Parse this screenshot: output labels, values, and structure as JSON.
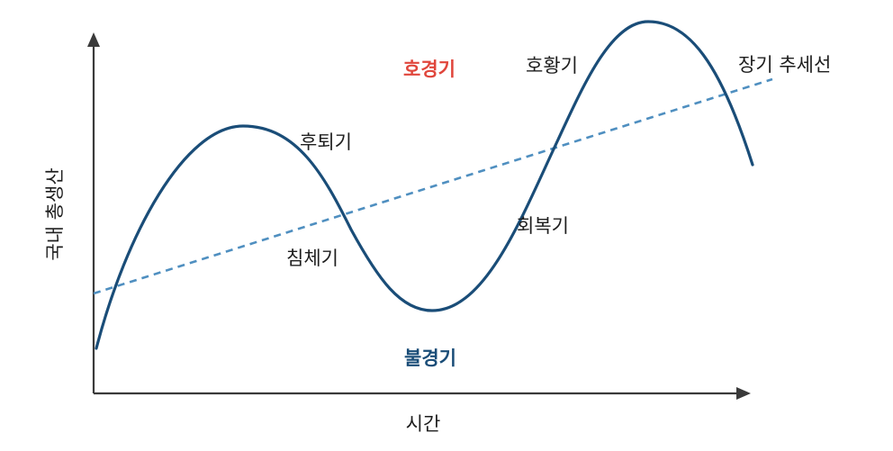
{
  "axes": {
    "x_label": "시간",
    "y_label": "국내 총생산"
  },
  "regions": {
    "boom": {
      "label": "호경기",
      "color": "#e0463c"
    },
    "recession": {
      "label": "불경기",
      "color": "#1a4d78"
    }
  },
  "phases": {
    "contraction": "후퇴기",
    "trough": "침체기",
    "recovery": "회복기",
    "expansion": "호황기"
  },
  "trend": {
    "label": "장기 추세선"
  },
  "colors": {
    "curve": "#1a4d78",
    "trend": "#4f8fc0",
    "axis": "#3a3a3a"
  }
}
